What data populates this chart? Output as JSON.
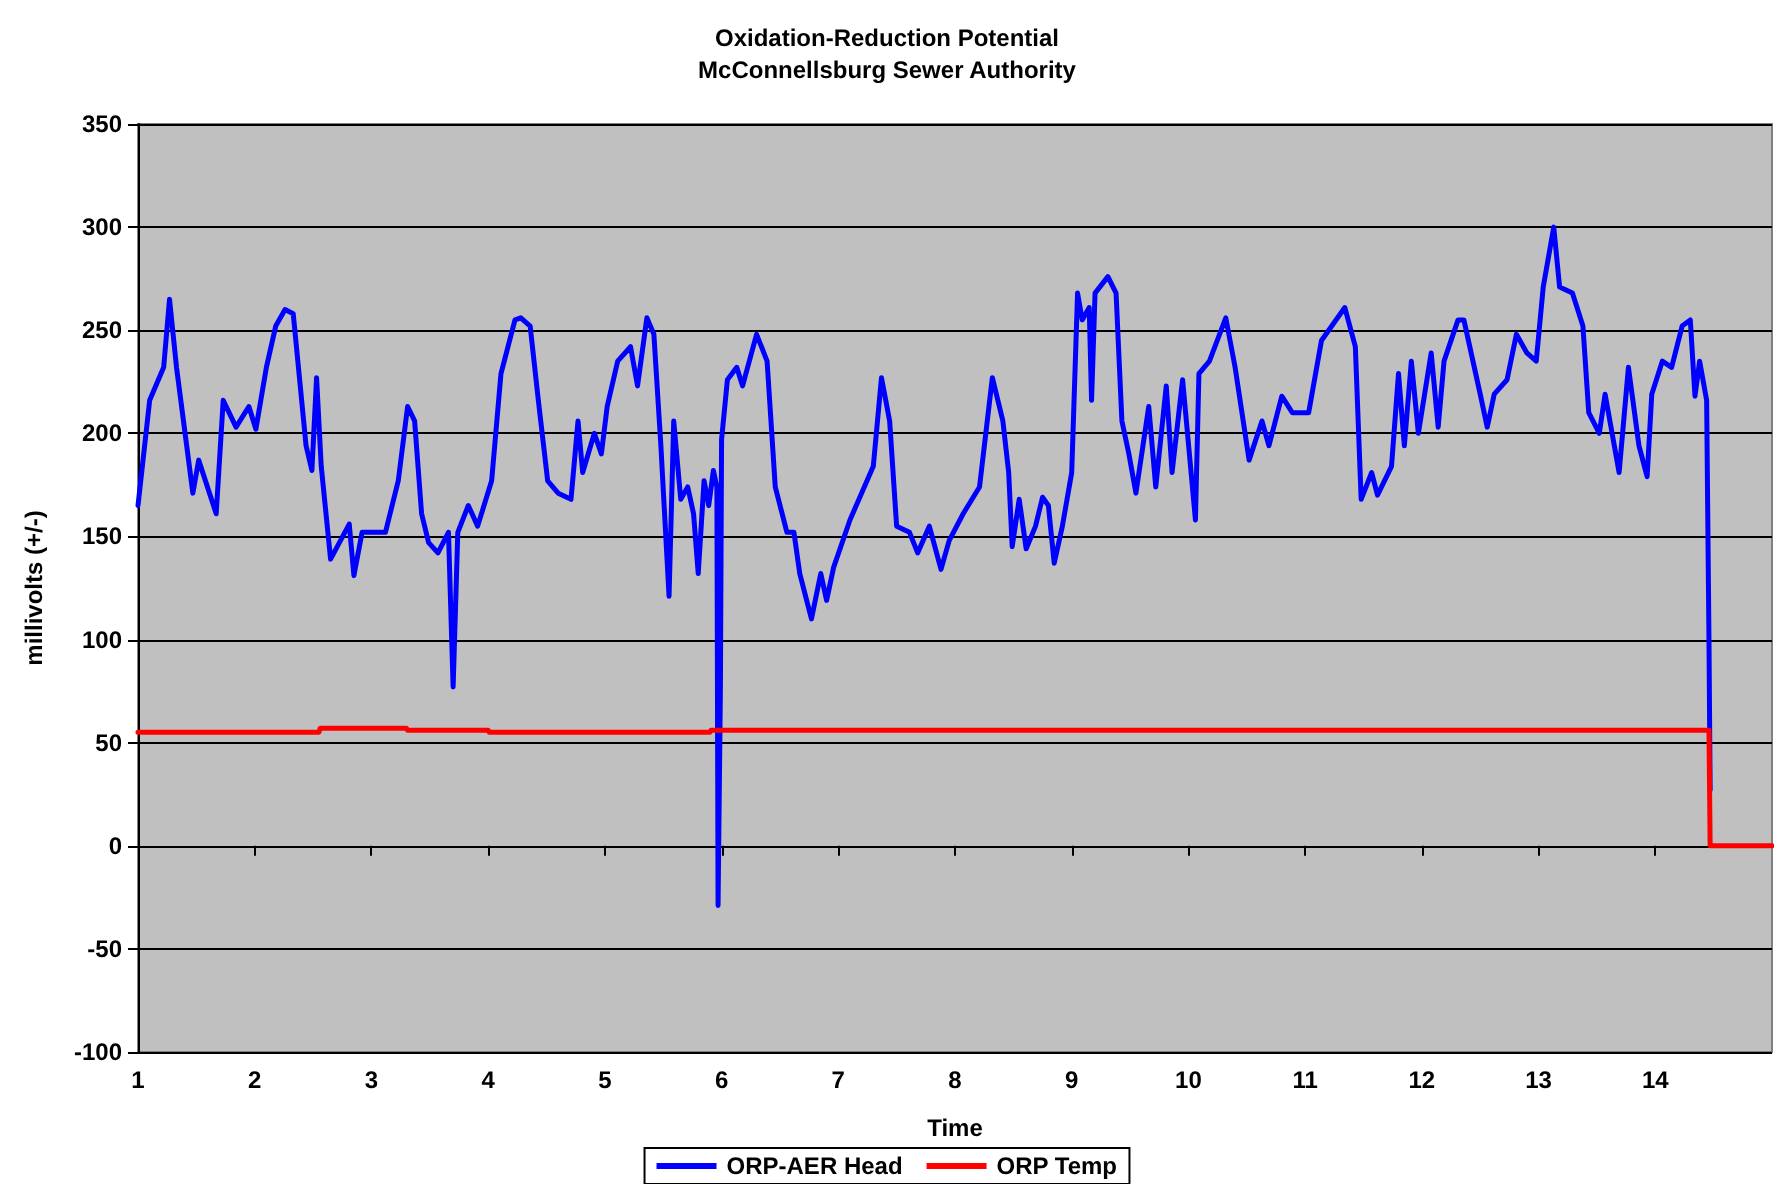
{
  "chart_data": {
    "type": "line",
    "title": "Oxidation-Reduction Potential",
    "subtitle": "McConnellsburg Sewer Authority",
    "xlabel": "Time",
    "ylabel": "millivolts (+/-)",
    "xlim": [
      1,
      15
    ],
    "xticks": [
      1,
      2,
      3,
      4,
      5,
      6,
      7,
      8,
      9,
      10,
      11,
      12,
      13,
      14
    ],
    "ylim": [
      -100,
      350
    ],
    "yticks": [
      -100,
      -50,
      0,
      50,
      100,
      150,
      200,
      250,
      300,
      350
    ],
    "grid": "y",
    "legend": "bottom",
    "marker": "none",
    "line_style": "solid",
    "series": [
      {
        "name": "ORP-AER Head",
        "color": "#0000ff",
        "x": [
          1.0,
          1.1,
          1.22,
          1.27,
          1.33,
          1.47,
          1.52,
          1.67,
          1.73,
          1.84,
          1.95,
          2.01,
          2.1,
          2.18,
          2.26,
          2.33,
          2.44,
          2.49,
          2.53,
          2.57,
          2.65,
          2.81,
          2.85,
          2.92,
          3.12,
          3.23,
          3.31,
          3.37,
          3.43,
          3.49,
          3.57,
          3.66,
          3.7,
          3.74,
          3.83,
          3.91,
          4.03,
          4.11,
          4.23,
          4.28,
          4.36,
          4.43,
          4.51,
          4.6,
          4.71,
          4.77,
          4.81,
          4.91,
          4.97,
          5.02,
          5.11,
          5.22,
          5.28,
          5.36,
          5.42,
          5.48,
          5.55,
          5.59,
          5.65,
          5.71,
          5.76,
          5.8,
          5.85,
          5.89,
          5.93,
          5.96,
          5.97,
          5.99,
          6.0,
          6.05,
          6.13,
          6.18,
          6.3,
          6.39,
          6.46,
          6.56,
          6.62,
          6.67,
          6.77,
          6.85,
          6.9,
          6.96,
          7.1,
          7.3,
          7.37,
          7.44,
          7.5,
          7.61,
          7.68,
          7.78,
          7.88,
          7.95,
          8.07,
          8.21,
          8.32,
          8.41,
          8.46,
          8.49,
          8.55,
          8.61,
          8.69,
          8.75,
          8.8,
          8.85,
          8.92,
          9.0,
          9.05,
          9.09,
          9.15,
          9.17,
          9.2,
          9.31,
          9.38,
          9.43,
          9.49,
          9.55,
          9.66,
          9.72,
          9.81,
          9.86,
          9.95,
          10.06,
          10.09,
          10.18,
          10.32,
          10.4,
          10.52,
          10.63,
          10.69,
          10.8,
          10.89,
          11.03,
          11.14,
          11.34,
          11.43,
          11.48,
          11.57,
          11.62,
          11.74,
          11.8,
          11.85,
          11.91,
          11.97,
          12.08,
          12.14,
          12.19,
          12.31,
          12.36,
          12.5,
          12.56,
          12.62,
          12.73,
          12.81,
          12.9,
          12.98,
          13.04,
          13.13,
          13.18,
          13.29,
          13.38,
          13.43,
          13.52,
          13.57,
          13.69,
          13.77,
          13.86,
          13.93,
          13.97,
          14.06,
          14.14,
          14.23,
          14.3,
          14.34,
          14.38,
          14.44,
          14.46,
          14.47
        ],
        "values": [
          165,
          216,
          232,
          265,
          232,
          171,
          187,
          161,
          216,
          203,
          213,
          202,
          232,
          252,
          260,
          258,
          194,
          182,
          227,
          184,
          139,
          156,
          131,
          152,
          152,
          177,
          213,
          206,
          161,
          147,
          142,
          152,
          77,
          152,
          165,
          155,
          177,
          229,
          255,
          256,
          252,
          216,
          177,
          171,
          168,
          206,
          181,
          200,
          190,
          213,
          235,
          242,
          223,
          256,
          248,
          194,
          121,
          206,
          168,
          174,
          161,
          132,
          177,
          165,
          182,
          174,
          -29,
          77,
          197,
          226,
          232,
          223,
          248,
          235,
          174,
          152,
          152,
          132,
          110,
          132,
          119,
          135,
          158,
          184,
          227,
          206,
          155,
          152,
          142,
          155,
          134,
          148,
          161,
          174,
          227,
          206,
          181,
          145,
          168,
          144,
          155,
          169,
          165,
          137,
          155,
          181,
          268,
          255,
          261,
          216,
          268,
          276,
          268,
          206,
          190,
          171,
          213,
          174,
          223,
          181,
          226,
          158,
          229,
          235,
          256,
          232,
          187,
          206,
          194,
          218,
          210,
          210,
          245,
          261,
          242,
          168,
          181,
          170,
          184,
          229,
          194,
          235,
          200,
          239,
          203,
          235,
          255,
          255,
          219,
          203,
          219,
          226,
          248,
          239,
          235,
          271,
          300,
          271,
          268,
          252,
          210,
          200,
          219,
          181,
          232,
          194,
          179,
          219,
          235,
          232,
          252,
          255,
          218,
          235,
          216,
          100,
          27
        ]
      },
      {
        "name": "ORP Temp",
        "color": "#ff0000",
        "x": [
          1,
          2.55,
          2.56,
          3.3,
          3.31,
          4.0,
          4.01,
          5.9,
          5.91,
          14.46,
          14.47,
          15
        ],
        "values": [
          55,
          55,
          57,
          57,
          56,
          56,
          55,
          55,
          56,
          56,
          0,
          0
        ]
      }
    ]
  }
}
